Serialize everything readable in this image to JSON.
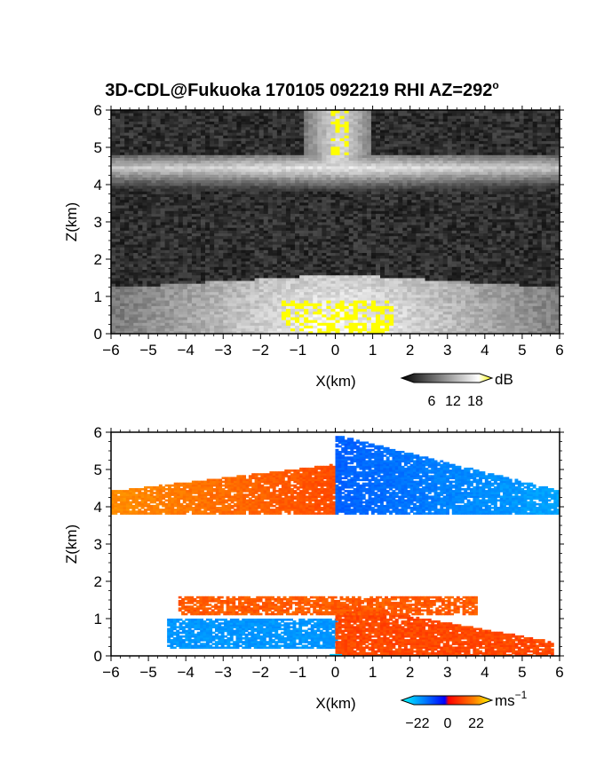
{
  "figure": {
    "title": "3D-CDL@Fukuoka 170105 092219 RHI AZ=292",
    "title_superscript": "o"
  },
  "colorbars": {
    "reflectivity": {
      "unit": "dB",
      "ticks": [
        "6",
        "12",
        "18"
      ]
    },
    "velocity": {
      "unit": "ms",
      "unit_superscript": "−1",
      "ticks": [
        "−22",
        "0",
        "22"
      ]
    }
  },
  "chart_data": [
    {
      "type": "heatmap",
      "title": "3D-CDL@Fukuoka 170105 092219 RHI AZ=292°",
      "xlabel": "X(km)",
      "ylabel": "Z(km)",
      "xlim": [
        -6,
        6
      ],
      "ylim": [
        0,
        6
      ],
      "x_ticks": [
        "−6",
        "−5",
        "−4",
        "−3",
        "−2",
        "−1",
        "0",
        "1",
        "2",
        "3",
        "4",
        "5",
        "6"
      ],
      "y_ticks": [
        "0",
        "1",
        "2",
        "3",
        "4",
        "5",
        "6"
      ],
      "colorbar": {
        "unit": "dB",
        "ticks": [
          6,
          12,
          18
        ]
      },
      "colormap": [
        "#000000",
        "#ffffff",
        "#ffff00"
      ],
      "layers": [
        {
          "z_range": [
            0,
            1.6
          ],
          "x_range": [
            -6,
            6
          ],
          "max_dB": 18,
          "peak_x": 0.1
        },
        {
          "z_range": [
            3.8,
            4.8
          ],
          "x_range": [
            -6,
            6
          ],
          "max_dB": 14,
          "peak_x": 0.0
        },
        {
          "z_range": [
            4.6,
            6.0
          ],
          "x_range": [
            -0.3,
            0.4
          ],
          "max_dB": 18,
          "peak_x": 0.1
        }
      ]
    },
    {
      "type": "heatmap",
      "xlabel": "X(km)",
      "ylabel": "Z(km)",
      "xlim": [
        -6,
        6
      ],
      "ylim": [
        0,
        6
      ],
      "x_ticks": [
        "−6",
        "−5",
        "−4",
        "−3",
        "−2",
        "−1",
        "0",
        "1",
        "2",
        "3",
        "4",
        "5",
        "6"
      ],
      "y_ticks": [
        "0",
        "1",
        "2",
        "3",
        "4",
        "5",
        "6"
      ],
      "colorbar": {
        "unit": "ms−1",
        "ticks": [
          -22,
          0,
          22
        ]
      },
      "colormap": [
        "#00ffff",
        "#0000ff",
        "#ff0000",
        "#ffff00"
      ],
      "layers": [
        {
          "z_range": [
            3.8,
            5.1
          ],
          "x_range": [
            -6,
            0
          ],
          "velocity": 14
        },
        {
          "z_range": [
            3.8,
            5.9
          ],
          "x_range": [
            0,
            6
          ],
          "velocity": -12
        },
        {
          "z_range": [
            0.2,
            1.0
          ],
          "x_range": [
            -4.5,
            0
          ],
          "velocity": -18
        },
        {
          "z_range": [
            0,
            1.6
          ],
          "x_range": [
            0,
            5.8
          ],
          "velocity": 6
        },
        {
          "z_range": [
            1.1,
            1.6
          ],
          "x_range": [
            -4.2,
            3.8
          ],
          "velocity": 8
        }
      ]
    }
  ]
}
